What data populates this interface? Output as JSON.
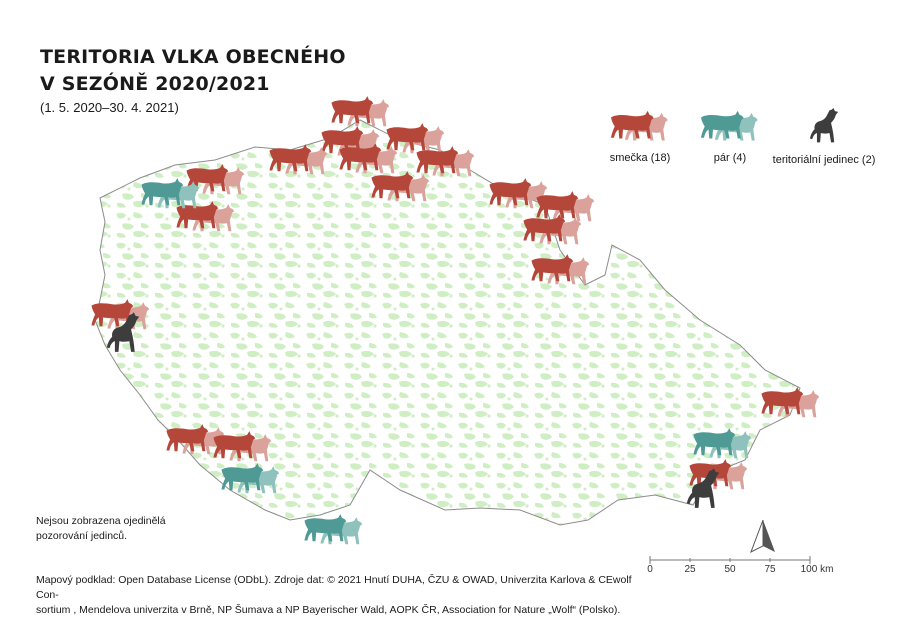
{
  "title": {
    "line1": "TERITORIA VLKA OBECNÉHO",
    "line2": "V SEZÓNĚ 2020/2021",
    "period": "(1. 5. 2020–30. 4. 2021)"
  },
  "legend": {
    "items": [
      {
        "key": "pack",
        "label": "smečka (18)",
        "icon": "wolf-pack-icon",
        "color": "#b5473a",
        "color2": "#dba29b"
      },
      {
        "key": "pair",
        "label": "pár (4)",
        "icon": "wolf-pair-icon",
        "color": "#4f9a95",
        "color2": "#8fc2bd"
      },
      {
        "key": "single",
        "label": "teritoriální jedinec (2)",
        "icon": "howling-wolf-icon",
        "color": "#3d3d3d",
        "color2": "#3d3d3d"
      }
    ]
  },
  "note": {
    "line1": "Nejsou zobrazena ojedinělá",
    "line2": "pozorování jedinců."
  },
  "credits": {
    "line1": "Mapový podklad: Open Database License (ODbL). Zdroje dat: © 2021 Hnutí DUHA, ČZU & OWAD, Univerzita Karlova & CEwolf Con-",
    "line2": "sortium , Mendelova univerzita v Brně, NP Šumava a NP Bayerischer Wald, AOPK ČR, Association for Nature „Wolf“ (Polsko)."
  },
  "scale": {
    "ticks": [
      "0",
      "25",
      "50",
      "75",
      "100 km"
    ]
  },
  "colors": {
    "forest": "#cfeec3",
    "border": "#8c8c8c",
    "pack": "#b5473a",
    "pack_light": "#dba29b",
    "pair": "#4f9a95",
    "pair_light": "#8fc2bd",
    "single": "#3d3d3d"
  },
  "territories": [
    {
      "type": "pack"
    },
    {
      "type": "pack"
    },
    {
      "type": "pack"
    },
    {
      "type": "pack"
    },
    {
      "type": "pack"
    },
    {
      "type": "pack"
    },
    {
      "type": "pack"
    },
    {
      "type": "pack"
    },
    {
      "type": "pack"
    },
    {
      "type": "pack"
    },
    {
      "type": "pack"
    },
    {
      "type": "pack"
    },
    {
      "type": "pack"
    },
    {
      "type": "pack"
    },
    {
      "type": "pack"
    },
    {
      "type": "pack"
    },
    {
      "type": "pack"
    },
    {
      "type": "pack"
    },
    {
      "type": "pair"
    },
    {
      "type": "pair"
    },
    {
      "type": "pair"
    },
    {
      "type": "pair"
    },
    {
      "type": "single"
    },
    {
      "type": "single"
    }
  ]
}
